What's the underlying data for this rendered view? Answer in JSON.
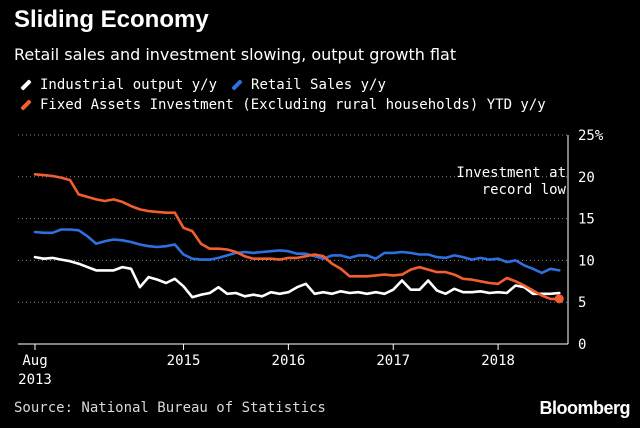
{
  "header": {
    "title": "Sliding Economy",
    "subtitle": "Retail sales and investment slowing, output growth flat"
  },
  "colors": {
    "background": "#000000",
    "industrial": "#ffffff",
    "retail": "#2f6fe0",
    "investment": "#f25e2f",
    "grid": "#8c8c8c"
  },
  "footer": {
    "source": "Source: National Bureau of Statistics",
    "brand": "Bloomberg"
  },
  "chart_data": {
    "type": "line",
    "title": "Sliding Economy",
    "subtitle": "Retail sales and investment slowing, output growth flat",
    "xlabel": "",
    "ylabel": "",
    "x_start": "Aug 2013",
    "x_unit": "months since Aug 2013",
    "xlim": [
      0,
      61
    ],
    "ylim": [
      0,
      25
    ],
    "y_ticks": [
      {
        "value": 0,
        "label": "0"
      },
      {
        "value": 5,
        "label": "5"
      },
      {
        "value": 10,
        "label": "10"
      },
      {
        "value": 15,
        "label": "15"
      },
      {
        "value": 20,
        "label": "20"
      },
      {
        "value": 25,
        "label": "25%"
      }
    ],
    "x_ticks": [
      {
        "x": 0,
        "line1": "Aug",
        "line2": "2013"
      },
      {
        "x": 17,
        "line1": "2015",
        "line2": ""
      },
      {
        "x": 29,
        "line1": "2016",
        "line2": ""
      },
      {
        "x": 41,
        "line1": "2017",
        "line2": ""
      },
      {
        "x": 53,
        "line1": "2018",
        "line2": ""
      }
    ],
    "grid": "horizontal dotted",
    "annotation": {
      "line1": "Investment at",
      "line2": "record low",
      "x": 58,
      "y": 5.5
    },
    "series": [
      {
        "name": "Industrial output y/y",
        "key": "industrial",
        "x": [
          0,
          1,
          2,
          3,
          4,
          5,
          6,
          7,
          8,
          9,
          10,
          11,
          12,
          13,
          14,
          15,
          16,
          17,
          18,
          19,
          20,
          21,
          22,
          23,
          24,
          25,
          26,
          27,
          28,
          29,
          30,
          31,
          32,
          33,
          34,
          35,
          36,
          37,
          38,
          39,
          40,
          41,
          42,
          43,
          44,
          45,
          46,
          47,
          48,
          49,
          50,
          51,
          52,
          53,
          54,
          55,
          56,
          57,
          58,
          59,
          60
        ],
        "values": [
          10.4,
          10.2,
          10.3,
          10.1,
          9.9,
          9.6,
          9.2,
          8.8,
          8.8,
          8.8,
          9.2,
          9.0,
          6.8,
          8.0,
          7.7,
          7.3,
          7.8,
          6.9,
          5.6,
          5.9,
          6.1,
          6.8,
          6.0,
          6.1,
          5.7,
          5.9,
          5.7,
          6.2,
          6.0,
          6.2,
          6.8,
          7.2,
          6.0,
          6.2,
          6.0,
          6.3,
          6.1,
          6.2,
          6.0,
          6.2,
          6.0,
          6.5,
          7.6,
          6.5,
          6.5,
          7.6,
          6.4,
          6.0,
          6.6,
          6.2,
          6.2,
          6.3,
          6.1,
          6.2,
          6.1,
          7.0,
          6.8,
          6.0,
          6.0,
          6.0,
          6.1
        ]
      },
      {
        "name": "Retail Sales y/y",
        "key": "retail",
        "x": [
          0,
          1,
          2,
          3,
          4,
          5,
          6,
          7,
          8,
          9,
          10,
          11,
          12,
          13,
          14,
          15,
          16,
          17,
          18,
          19,
          20,
          21,
          22,
          23,
          24,
          25,
          26,
          27,
          28,
          29,
          30,
          31,
          32,
          33,
          34,
          35,
          36,
          37,
          38,
          39,
          40,
          41,
          42,
          43,
          44,
          45,
          46,
          47,
          48,
          49,
          50,
          51,
          52,
          53,
          54,
          55,
          56,
          57,
          58,
          59,
          60
        ],
        "values": [
          13.4,
          13.3,
          13.3,
          13.7,
          13.7,
          13.6,
          12.9,
          12.0,
          12.3,
          12.5,
          12.4,
          12.2,
          11.9,
          11.7,
          11.6,
          11.7,
          11.9,
          10.7,
          10.2,
          10.1,
          10.1,
          10.3,
          10.6,
          10.9,
          11.0,
          10.9,
          11.0,
          11.1,
          11.2,
          11.1,
          10.8,
          10.8,
          10.5,
          10.2,
          10.6,
          10.6,
          10.3,
          10.6,
          10.6,
          10.2,
          10.9,
          10.9,
          11.0,
          10.9,
          10.7,
          10.7,
          10.4,
          10.3,
          10.6,
          10.4,
          10.1,
          10.3,
          10.1,
          10.2,
          9.8,
          10.0,
          9.4,
          9.0,
          8.5,
          9.0,
          8.8
        ]
      },
      {
        "name": "Fixed Assets Investment (Excluding rural households) YTD y/y",
        "key": "investment",
        "x": [
          0,
          1,
          2,
          3,
          4,
          5,
          6,
          7,
          8,
          9,
          10,
          11,
          12,
          13,
          14,
          15,
          16,
          17,
          18,
          19,
          20,
          21,
          22,
          23,
          24,
          25,
          26,
          27,
          28,
          29,
          30,
          31,
          32,
          33,
          34,
          35,
          36,
          37,
          38,
          39,
          40,
          41,
          42,
          43,
          44,
          45,
          46,
          47,
          48,
          49,
          50,
          51,
          52,
          53,
          54,
          55,
          56,
          57,
          58,
          59,
          60
        ],
        "values": [
          20.3,
          20.2,
          20.1,
          19.9,
          19.6,
          17.9,
          17.6,
          17.3,
          17.1,
          17.3,
          17.0,
          16.5,
          16.1,
          15.9,
          15.8,
          15.7,
          15.7,
          13.9,
          13.5,
          12.0,
          11.4,
          11.4,
          11.3,
          11.0,
          10.5,
          10.2,
          10.2,
          10.2,
          10.1,
          10.3,
          10.3,
          10.5,
          10.7,
          10.5,
          9.6,
          9.0,
          8.1,
          8.1,
          8.1,
          8.2,
          8.3,
          8.2,
          8.3,
          8.9,
          9.2,
          8.9,
          8.6,
          8.6,
          8.3,
          7.8,
          7.7,
          7.5,
          7.3,
          7.2,
          7.9,
          7.5,
          7.0,
          6.4,
          5.8,
          5.4,
          5.4
        ]
      }
    ]
  }
}
